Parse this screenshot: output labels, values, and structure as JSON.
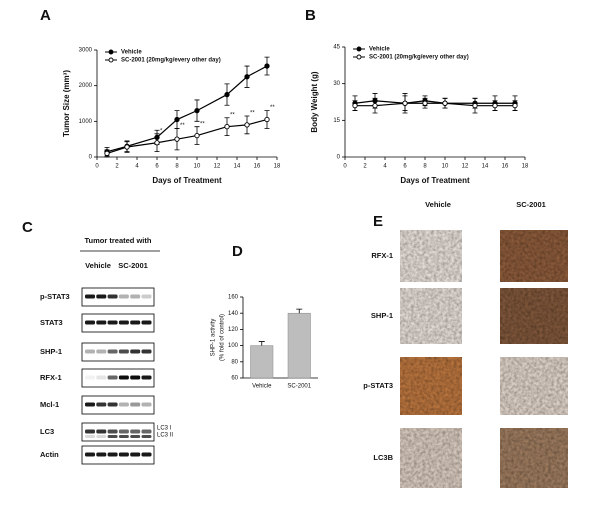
{
  "panel_labels": [
    "A",
    "B",
    "C",
    "D",
    "E"
  ],
  "chart_data": [
    {
      "type": "line",
      "ylabel": "Tumor Size (mm³)",
      "xlabel": "Days of Treatment",
      "x": [
        1,
        3,
        6,
        8,
        10,
        13,
        15,
        17
      ],
      "series": [
        {
          "name": "Vehicle",
          "color": "#000000",
          "marker": "filled",
          "values": [
            150,
            300,
            550,
            1050,
            1300,
            1750,
            2250,
            2550
          ],
          "errors": [
            120,
            150,
            200,
            250,
            300,
            300,
            300,
            250
          ]
        },
        {
          "name": "SC-2001 (20mg/kg/every other day)",
          "color": "#000000",
          "marker": "open",
          "values": [
            100,
            280,
            400,
            500,
            600,
            850,
            900,
            1050
          ],
          "errors": [
            100,
            150,
            250,
            300,
            250,
            250,
            250,
            250
          ],
          "significance": [
            null,
            null,
            "*",
            "**",
            "**",
            "**",
            "**",
            "**"
          ]
        }
      ],
      "xlim": [
        0,
        18
      ],
      "xticks": [
        0,
        2,
        4,
        6,
        8,
        10,
        12,
        14,
        16,
        18
      ],
      "ylim": [
        0,
        3000
      ],
      "yticks": [
        0,
        1000,
        2000,
        3000
      ],
      "legend": "upper left"
    },
    {
      "type": "line",
      "ylabel": "Body Weight (g)",
      "xlabel": "Days of Treatment",
      "x": [
        1,
        3,
        6,
        8,
        10,
        13,
        15,
        17
      ],
      "series": [
        {
          "name": "Vehicle",
          "color": "#000000",
          "marker": "filled",
          "values": [
            22,
            23,
            22,
            23,
            22,
            22,
            22,
            22
          ],
          "errors": [
            3,
            3,
            3,
            2,
            2,
            2,
            3,
            3
          ]
        },
        {
          "name": "SC-2001 (20mg/kg/every other day)",
          "color": "#000000",
          "marker": "open",
          "values": [
            21,
            21,
            22,
            22,
            22,
            21,
            21,
            21
          ],
          "errors": [
            2,
            3,
            4,
            2,
            2,
            3,
            2,
            2
          ]
        }
      ],
      "xlim": [
        0,
        18
      ],
      "xticks": [
        0,
        2,
        4,
        6,
        8,
        10,
        12,
        14,
        16,
        18
      ],
      "ylim": [
        0,
        45
      ],
      "yticks": [
        0,
        15,
        30,
        45
      ],
      "legend": "upper left"
    },
    {
      "type": "bar",
      "ylabel": [
        "SHP-1 activity",
        "(% fold of control)"
      ],
      "categories": [
        "Vehicle",
        "SC-2001"
      ],
      "values": [
        100,
        140
      ],
      "errors": [
        5,
        5
      ],
      "color": "#bdbdbd",
      "ylim": [
        60,
        160
      ],
      "yticks": [
        60,
        80,
        100,
        120,
        140,
        160
      ]
    }
  ],
  "blot": {
    "header": "Tumor treated with",
    "groups": [
      "Vehicle",
      "SC-2001"
    ],
    "rows": [
      "p-STAT3",
      "STAT3",
      "SHP-1",
      "RFX-1",
      "Mcl-1",
      "LC3",
      "Actin"
    ],
    "lc3_bands": [
      "LC3 I",
      "LC3 II"
    ]
  },
  "ihc": {
    "columns": [
      "Vehicle",
      "SC-2001"
    ],
    "rows": [
      "RFX-1",
      "SHP-1",
      "p-STAT3",
      "LC3B"
    ]
  }
}
